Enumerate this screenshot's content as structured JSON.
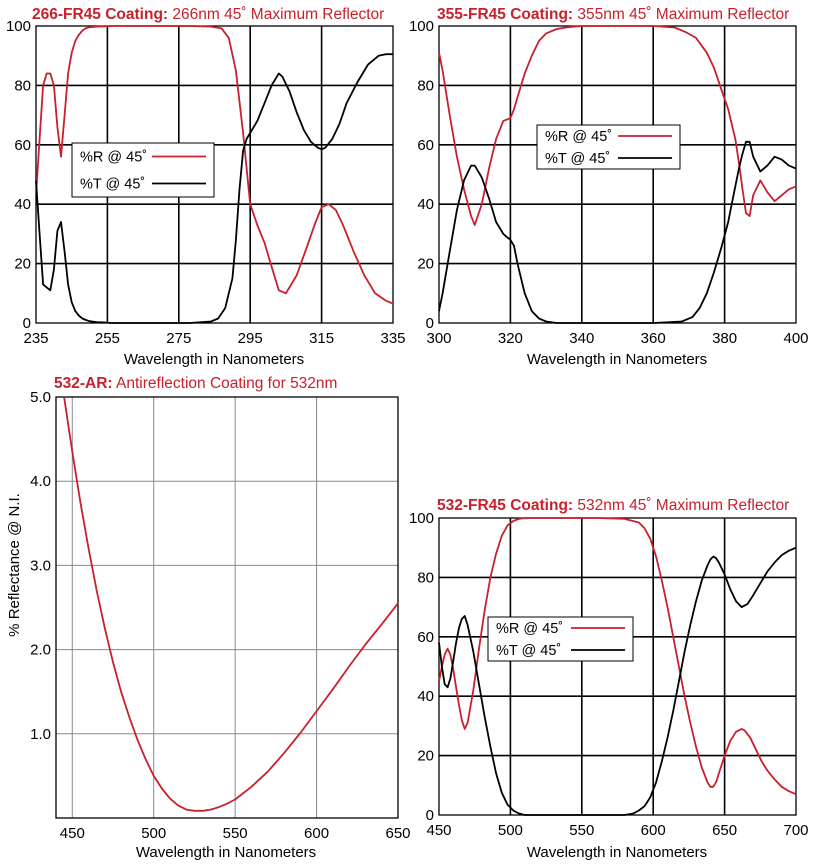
{
  "colors": {
    "red": "#c8202c",
    "black": "#000000",
    "grid": "#000000",
    "light_grid": "#8a8a8a"
  },
  "chart_data": [
    {
      "id": "c266",
      "type": "line",
      "title_bold": "266-FR45 Coating:",
      "title_rest": " 266nm 45˚ Maximum Reflector",
      "xlabel": "Wavelength in Nanometers",
      "ylabel": "",
      "xlim": [
        235,
        335
      ],
      "ylim": [
        0,
        100
      ],
      "xticks": [
        "235",
        "255",
        "275",
        "295",
        "315",
        "335"
      ],
      "yticks": [
        "0",
        "20",
        "40",
        "60",
        "80",
        "100"
      ],
      "grid": true,
      "legend": "left-middle",
      "series": [
        {
          "name": "%R @ 45˚",
          "color": "#c8202c",
          "x": [
            235,
            236,
            237,
            238,
            239,
            240,
            241,
            242,
            243,
            244,
            245,
            246,
            247,
            248,
            249,
            250,
            252,
            254,
            256,
            258,
            262,
            270,
            278,
            284,
            287,
            289,
            291,
            293,
            295,
            297,
            299,
            301,
            303,
            305,
            308,
            311,
            313,
            315,
            317,
            319,
            321,
            324,
            327,
            330,
            333,
            335
          ],
          "y": [
            43,
            62,
            80,
            84,
            84,
            80,
            66,
            56,
            70,
            84,
            91,
            95,
            97,
            98.5,
            99.3,
            99.6,
            99.8,
            99.9,
            100,
            100,
            100,
            100,
            100,
            99.8,
            99.2,
            96,
            85,
            64,
            40,
            33,
            27,
            19,
            11,
            10,
            16,
            26,
            33,
            39,
            40,
            38,
            33,
            24,
            16,
            10,
            7.5,
            6.5
          ]
        },
        {
          "name": "%T @ 45˚",
          "color": "#000000",
          "x": [
            235,
            236,
            237,
            238,
            239,
            240,
            241,
            242,
            243,
            244,
            245,
            246,
            247,
            248,
            249,
            250,
            252,
            254,
            256,
            258,
            262,
            270,
            278,
            284,
            286,
            288,
            290,
            291,
            292,
            293,
            294,
            295,
            297,
            299,
            301,
            303,
            304,
            306,
            308,
            310,
            312,
            314,
            315,
            316,
            318,
            320,
            322,
            325,
            328,
            331,
            333,
            335
          ],
          "y": [
            48,
            30,
            13,
            12,
            11,
            18,
            31,
            34,
            24,
            13,
            7,
            4,
            2.5,
            1.5,
            1,
            0.6,
            0.3,
            0.2,
            0,
            0,
            0,
            0,
            0,
            0.5,
            1.5,
            5,
            15,
            28,
            45,
            58,
            62,
            64,
            68,
            74,
            80,
            84,
            83,
            78,
            71,
            65,
            61,
            59,
            58.5,
            59,
            62,
            67,
            74,
            81,
            87,
            90,
            90.5,
            90.5
          ]
        }
      ]
    },
    {
      "id": "c355",
      "type": "line",
      "title_bold": "355-FR45 Coating:",
      "title_rest": " 355nm 45˚ Maximum Reflector",
      "xlabel": "Wavelength in Nanometers",
      "ylabel": "",
      "xlim": [
        300,
        400
      ],
      "ylim": [
        0,
        100
      ],
      "xticks": [
        "300",
        "320",
        "340",
        "360",
        "380",
        "400"
      ],
      "yticks": [
        "0",
        "20",
        "40",
        "60",
        "80",
        "100"
      ],
      "grid": true,
      "legend": "top-right",
      "series": [
        {
          "name": "%R @ 45˚",
          "color": "#c8202c",
          "x": [
            300,
            301,
            303,
            305,
            307,
            309,
            310,
            312,
            314,
            316,
            318,
            320,
            321,
            322,
            324,
            326,
            328,
            330,
            333,
            336,
            340,
            350,
            360,
            366,
            369,
            372,
            375,
            377,
            379,
            381,
            382,
            383,
            384,
            385,
            386,
            387,
            388,
            390,
            392,
            394,
            396,
            398,
            400
          ],
          "y": [
            91,
            85,
            70,
            56,
            45,
            36,
            33,
            40,
            52,
            62,
            68,
            69,
            72,
            76,
            84,
            90,
            95,
            97.5,
            99,
            99.6,
            100,
            100,
            100,
            99.5,
            98,
            96,
            91,
            86,
            79,
            72,
            67,
            62,
            54,
            45,
            37,
            36,
            43,
            48,
            44,
            41,
            43,
            45,
            46
          ]
        },
        {
          "name": "%T @ 45˚",
          "color": "#000000",
          "x": [
            300,
            301,
            303,
            305,
            307,
            309,
            310,
            312,
            314,
            316,
            318,
            319,
            320,
            321,
            322,
            324,
            326,
            328,
            330,
            333,
            336,
            340,
            350,
            360,
            368,
            371,
            373,
            375,
            377,
            379,
            381,
            382,
            383,
            384,
            385,
            386,
            387,
            388,
            390,
            392,
            394,
            396,
            398,
            400
          ],
          "y": [
            4,
            10,
            24,
            38,
            48,
            53,
            53,
            49,
            42,
            34,
            30,
            29,
            28,
            26,
            20,
            10,
            4,
            1.5,
            0.5,
            0,
            0,
            0,
            0,
            0,
            0.5,
            2,
            5,
            10,
            17,
            25,
            34,
            40,
            46,
            52,
            57,
            61,
            61,
            56,
            51,
            53,
            56,
            55,
            53,
            52
          ]
        }
      ]
    },
    {
      "id": "c532ar",
      "type": "line",
      "title_bold": "532-AR:",
      "title_rest": " Antireflection Coating for 532nm",
      "xlabel": "Wavelength in Nanometers",
      "ylabel": "% Reflectance @ N.I.",
      "xlim": [
        440,
        650
      ],
      "ylim": [
        0,
        5
      ],
      "xticks": [
        "450",
        "500",
        "550",
        "600",
        "650"
      ],
      "yticks": [
        "1.0",
        "2.0",
        "3.0",
        "4.0",
        "5.0"
      ],
      "ytick_values": [
        1,
        2,
        3,
        4,
        5
      ],
      "grid": true,
      "series": [
        {
          "name": "",
          "color": "#c8202c",
          "x": [
            445,
            450,
            455,
            460,
            465,
            470,
            475,
            480,
            485,
            490,
            495,
            500,
            505,
            510,
            515,
            520,
            525,
            530,
            535,
            540,
            545,
            550,
            560,
            570,
            580,
            590,
            600,
            610,
            620,
            630,
            640,
            650
          ],
          "y": [
            5.0,
            4.35,
            3.75,
            3.2,
            2.7,
            2.25,
            1.85,
            1.5,
            1.2,
            0.93,
            0.7,
            0.5,
            0.35,
            0.23,
            0.15,
            0.1,
            0.085,
            0.085,
            0.1,
            0.13,
            0.17,
            0.22,
            0.37,
            0.55,
            0.77,
            1.01,
            1.27,
            1.53,
            1.8,
            2.06,
            2.3,
            2.55
          ]
        }
      ]
    },
    {
      "id": "c532fr",
      "type": "line",
      "title_bold": "532-FR45 Coating:",
      "title_rest": " 532nm 45˚ Maximum Reflector",
      "xlabel": "Wavelength in Nanometers",
      "ylabel": "",
      "xlim": [
        450,
        700
      ],
      "ylim": [
        0,
        100
      ],
      "xticks": [
        "450",
        "500",
        "550",
        "600",
        "650",
        "700"
      ],
      "yticks": [
        "0",
        "20",
        "40",
        "60",
        "80",
        "100"
      ],
      "grid": true,
      "legend": "middle",
      "series": [
        {
          "name": "%R @ 45˚",
          "color": "#c8202c",
          "x": [
            450,
            452,
            454,
            456,
            458,
            460,
            462,
            464,
            466,
            468,
            470,
            474,
            478,
            482,
            486,
            490,
            494,
            498,
            502,
            506,
            510,
            520,
            540,
            560,
            580,
            590,
            594,
            598,
            602,
            606,
            610,
            614,
            618,
            622,
            626,
            630,
            634,
            638,
            640,
            642,
            644,
            646,
            650,
            654,
            658,
            662,
            664,
            668,
            672,
            676,
            680,
            685,
            690,
            695,
            700
          ],
          "y": [
            45,
            50,
            54,
            56,
            54,
            49,
            43,
            37,
            32,
            29,
            31,
            42,
            56,
            69,
            80,
            88,
            94,
            97.5,
            99,
            99.7,
            100,
            100,
            100,
            100,
            99.7,
            98.5,
            96.5,
            93,
            87,
            79,
            70,
            60,
            50,
            40,
            31,
            23,
            16,
            11,
            9.5,
            9.5,
            11,
            14,
            20,
            25,
            28,
            29,
            28.5,
            26,
            22,
            18,
            15,
            12,
            9.5,
            8,
            7
          ]
        },
        {
          "name": "%T @ 45˚",
          "color": "#000000",
          "x": [
            450,
            452,
            454,
            456,
            458,
            460,
            462,
            464,
            466,
            468,
            470,
            474,
            478,
            482,
            486,
            490,
            494,
            498,
            502,
            506,
            510,
            520,
            540,
            560,
            580,
            586,
            590,
            594,
            598,
            602,
            606,
            610,
            614,
            618,
            622,
            626,
            630,
            634,
            638,
            640,
            642,
            644,
            646,
            650,
            654,
            658,
            662,
            666,
            670,
            675,
            680,
            685,
            690,
            695,
            700
          ],
          "y": [
            58,
            50,
            44,
            43,
            46,
            52,
            58,
            63,
            66,
            67,
            64,
            55,
            44,
            33,
            23,
            14,
            7.5,
            3.5,
            1.5,
            0.5,
            0,
            0,
            0,
            0,
            0,
            0.5,
            1.5,
            3,
            6,
            11,
            18,
            26,
            35,
            45,
            55,
            64,
            72,
            79,
            84,
            86,
            87,
            86.5,
            85,
            81,
            76,
            72,
            70,
            71,
            74,
            78,
            82,
            85,
            87.5,
            89,
            90
          ]
        }
      ]
    }
  ]
}
